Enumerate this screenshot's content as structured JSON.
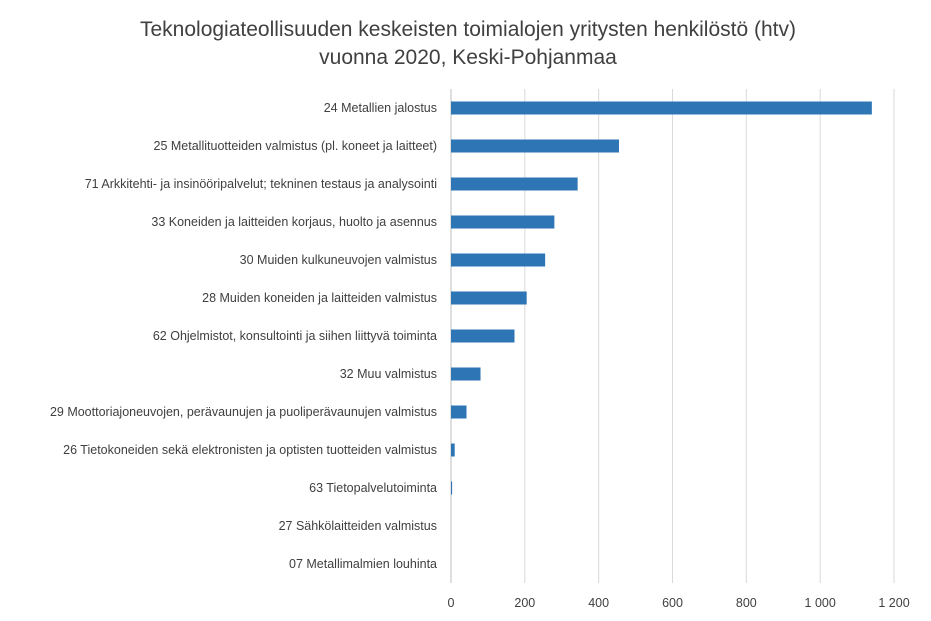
{
  "chart_data": {
    "type": "bar",
    "orientation": "horizontal",
    "title": "Teknologiateollisuuden keskeisten toimialojen yritysten henkilöstö (htv)",
    "subtitle": "vuonna 2020, Keski-Pohjanmaa",
    "categories": [
      "24 Metallien jalostus",
      "25 Metallituotteiden valmistus (pl. koneet ja laitteet)",
      "71 Arkkitehti- ja insinööripalvelut; tekninen testaus ja analysointi",
      "33 Koneiden ja laitteiden korjaus, huolto ja asennus",
      "30 Muiden kulkuneuvojen valmistus",
      "28 Muiden koneiden ja laitteiden valmistus",
      "62 Ohjelmistot, konsultointi ja siihen liittyvä toiminta",
      "32 Muu valmistus",
      "29 Moottoriajoneuvojen, perävaunujen ja puoliperävaunujen valmistus",
      "26 Tietokoneiden sekä elektronisten ja optisten tuotteiden valmistus",
      "63 Tietopalvelutoiminta",
      "27 Sähkölaitteiden valmistus",
      "07 Metallimalmien louhinta"
    ],
    "values": [
      1140,
      455,
      343,
      280,
      255,
      205,
      172,
      80,
      42,
      10,
      3,
      0,
      0
    ],
    "xlim": [
      0,
      1200
    ],
    "xticks": [
      0,
      200,
      400,
      600,
      800,
      1000,
      1200
    ],
    "xtick_labels": [
      "0",
      "200",
      "400",
      "600",
      "800",
      "1 000",
      "1 200"
    ],
    "grid": true,
    "bar_color": "#2e75b6"
  }
}
